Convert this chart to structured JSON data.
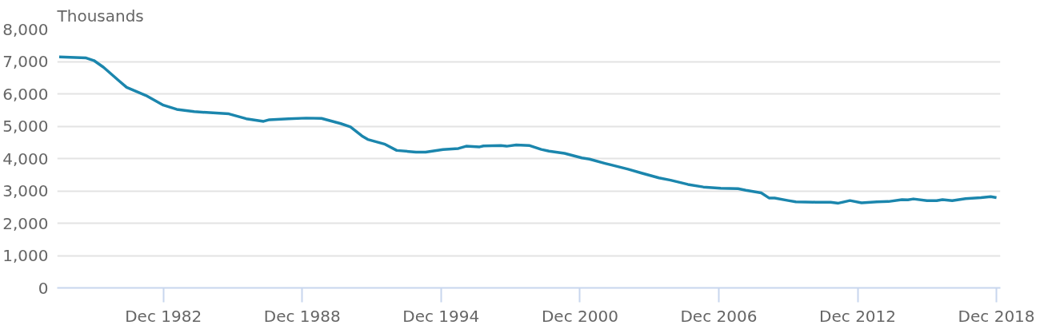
{
  "chart_data": {
    "type": "line",
    "ylabel": "Thousands",
    "x": [
      "1978-06",
      "1979-08",
      "1979-12",
      "1980-05",
      "1981-01",
      "1981-05",
      "1982-03",
      "1982-12",
      "1983-07",
      "1984-04",
      "1985-10",
      "1986-07",
      "1987-04",
      "1987-07",
      "1988-05",
      "1989-02",
      "1989-10",
      "1990-08",
      "1991-01",
      "1991-07",
      "1991-10",
      "1992-07",
      "1993-01",
      "1993-11",
      "1994-04",
      "1995-01",
      "1995-09",
      "1996-01",
      "1996-08",
      "1996-10",
      "1997-07",
      "1997-10",
      "1998-03",
      "1998-10",
      "1999-04",
      "1999-08",
      "2000-04",
      "2001-01",
      "2001-05",
      "2002-01",
      "2003-01",
      "2003-08",
      "2004-05",
      "2004-11",
      "2005-08",
      "2006-04",
      "2007-01",
      "2007-10",
      "2008-02",
      "2008-10",
      "2009-02",
      "2009-05",
      "2009-12",
      "2010-04",
      "2011-02",
      "2011-10",
      "2012-02",
      "2012-08",
      "2013-02",
      "2013-10",
      "2014-04",
      "2014-11",
      "2015-02",
      "2015-05",
      "2015-12",
      "2016-05",
      "2016-08",
      "2017-01",
      "2017-08",
      "2018-04",
      "2018-09",
      "2018-12"
    ],
    "series": [
      {
        "color": "#1b86ad",
        "values": [
          7140,
          7110,
          7030,
          6820,
          6400,
          6200,
          5950,
          5650,
          5520,
          5450,
          5380,
          5230,
          5150,
          5200,
          5230,
          5250,
          5240,
          5080,
          4980,
          4700,
          4590,
          4440,
          4250,
          4200,
          4200,
          4280,
          4310,
          4380,
          4360,
          4390,
          4400,
          4380,
          4420,
          4400,
          4280,
          4230,
          4160,
          4020,
          3980,
          3850,
          3670,
          3550,
          3400,
          3330,
          3200,
          3120,
          3080,
          3070,
          3020,
          2940,
          2780,
          2780,
          2700,
          2660,
          2650,
          2650,
          2620,
          2700,
          2630,
          2660,
          2670,
          2730,
          2720,
          2750,
          2700,
          2700,
          2730,
          2700,
          2760,
          2790,
          2820,
          2790
        ]
      }
    ],
    "xlim": [
      "1978-05",
      "2019-02"
    ],
    "xticks": [
      {
        "value": "1982-12",
        "label": "Dec 1982"
      },
      {
        "value": "1988-12",
        "label": "Dec 1988"
      },
      {
        "value": "1994-12",
        "label": "Dec 1994"
      },
      {
        "value": "2000-12",
        "label": "Dec 2000"
      },
      {
        "value": "2006-12",
        "label": "Dec 2006"
      },
      {
        "value": "2012-12",
        "label": "Dec 2012"
      },
      {
        "value": "2018-12",
        "label": "Dec 2018"
      }
    ],
    "ylim": [
      0,
      8000
    ],
    "yticks": [
      {
        "value": 0,
        "label": "0"
      },
      {
        "value": 1000,
        "label": "1,000"
      },
      {
        "value": 2000,
        "label": "2,000"
      },
      {
        "value": 3000,
        "label": "3,000"
      },
      {
        "value": 4000,
        "label": "4,000"
      },
      {
        "value": 5000,
        "label": "5,000"
      },
      {
        "value": 6000,
        "label": "6,000"
      },
      {
        "value": 7000,
        "label": "7,000"
      },
      {
        "value": 8000,
        "label": "8,000"
      }
    ],
    "grid": "y",
    "marker": "none",
    "line_style": "solid"
  }
}
